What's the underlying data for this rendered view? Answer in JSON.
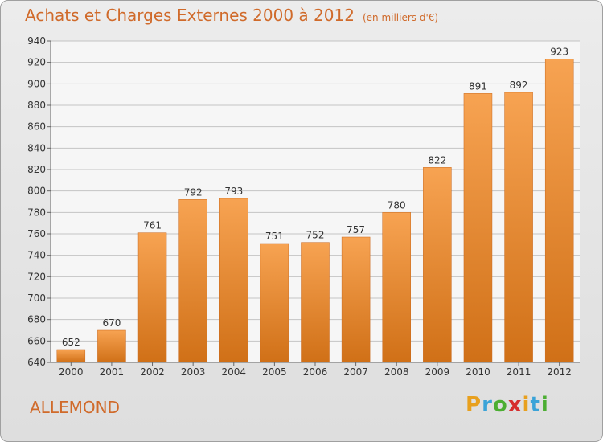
{
  "title": "Achats et Charges Externes 2000 à 2012",
  "subtitle": "(en milliers d'€)",
  "commune": "ALLEMOND",
  "logo": {
    "letters": [
      "P",
      "r",
      "o",
      "x",
      "i",
      "t",
      "i"
    ],
    "colors": [
      "#e8a01e",
      "#3aa3d8",
      "#4cae32",
      "#d62e2e",
      "#e8a01e",
      "#3aa3d8",
      "#4cae32"
    ]
  },
  "colors": {
    "bar": "#f0923a",
    "title": "#d06a2a"
  },
  "chart_data": {
    "type": "bar",
    "title": "Achats et Charges Externes 2000 à 2012",
    "subtitle": "(en milliers d'€)",
    "xlabel": "",
    "ylabel": "",
    "categories": [
      "2000",
      "2001",
      "2002",
      "2003",
      "2004",
      "2005",
      "2006",
      "2007",
      "2008",
      "2009",
      "2010",
      "2011",
      "2012"
    ],
    "values": [
      652,
      670,
      761,
      792,
      793,
      751,
      752,
      757,
      780,
      822,
      891,
      892,
      923
    ],
    "ylim": [
      640,
      940
    ],
    "yticks": [
      640,
      660,
      680,
      700,
      720,
      740,
      760,
      780,
      800,
      820,
      840,
      860,
      880,
      900,
      920,
      940
    ],
    "grid": true
  }
}
